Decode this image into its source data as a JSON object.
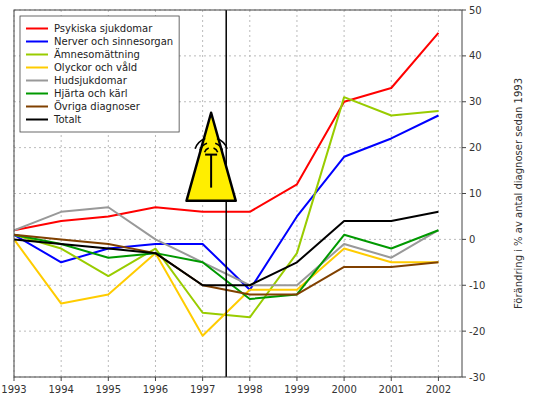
{
  "chart_data": {
    "type": "line",
    "x": [
      1993,
      1994,
      1995,
      1996,
      1997,
      1998,
      1999,
      2000,
      2001,
      2002
    ],
    "series": [
      {
        "name": "Psykiska sjukdomar",
        "color": "#ff0000",
        "values": [
          2,
          4,
          5,
          7,
          6,
          6,
          12,
          30,
          33,
          45
        ]
      },
      {
        "name": "Nerver och sinnesorgan",
        "color": "#0000ff",
        "values": [
          1,
          -5,
          -2,
          -1,
          -1,
          -11,
          5,
          18,
          22,
          27
        ]
      },
      {
        "name": "Ämnesomättning",
        "color": "#99cc00",
        "values": [
          1,
          -2,
          -8,
          -2,
          -16,
          -17,
          -3,
          31,
          27,
          28
        ]
      },
      {
        "name": "Olyckor och våld",
        "color": "#ffcc00",
        "values": [
          0,
          -14,
          -12,
          -3,
          -21,
          -11,
          -11,
          -2,
          -5,
          -5
        ]
      },
      {
        "name": "Hudsjukdomar",
        "color": "#999999",
        "values": [
          2,
          6,
          7,
          0,
          -5,
          -10,
          -10,
          -1,
          -4,
          2
        ]
      },
      {
        "name": "Hjärta och kärl",
        "color": "#009900",
        "values": [
          1,
          -1,
          -4,
          -3,
          -5,
          -13,
          -12,
          1,
          -2,
          2
        ]
      },
      {
        "name": "Övriga diagnoser",
        "color": "#804000",
        "values": [
          1,
          0,
          -1,
          -3,
          -10,
          -12,
          -12,
          -6,
          -6,
          -5
        ]
      },
      {
        "name": "Totalt",
        "color": "#000000",
        "values": [
          0,
          -1,
          -2,
          -3,
          -10,
          -10,
          -5,
          4,
          4,
          6
        ]
      }
    ],
    "ylabel": "Förändring i % av antal diagnoser sedan 1993",
    "xlim": [
      1993,
      2002.5
    ],
    "xticks": [
      1993,
      1994,
      1995,
      1996,
      1997,
      1998,
      1999,
      2000,
      2001,
      2002
    ],
    "ylim": [
      -30,
      50
    ],
    "yticks": [
      -30,
      -20,
      -10,
      0,
      10,
      20,
      30,
      40,
      50
    ],
    "vertical_line": 1997.5,
    "grid": true,
    "legend": "upper left"
  }
}
